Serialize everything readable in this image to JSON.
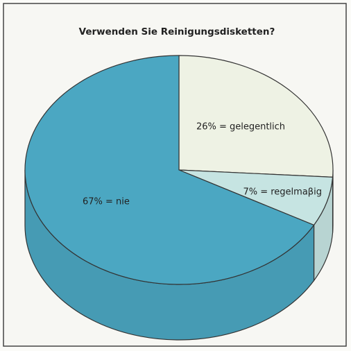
{
  "chart_data": {
    "type": "pie",
    "title": "Verwenden Sie Reinigungsdisketten?",
    "series": [
      {
        "values": [
          26,
          7,
          67
        ],
        "value_labels": [
          "26% = gelegentlich",
          "7% = regelmaβig",
          "67% = nie"
        ],
        "colors": [
          "#eef2e4",
          "#c6e4e2",
          "#4ba7c2"
        ]
      }
    ]
  }
}
